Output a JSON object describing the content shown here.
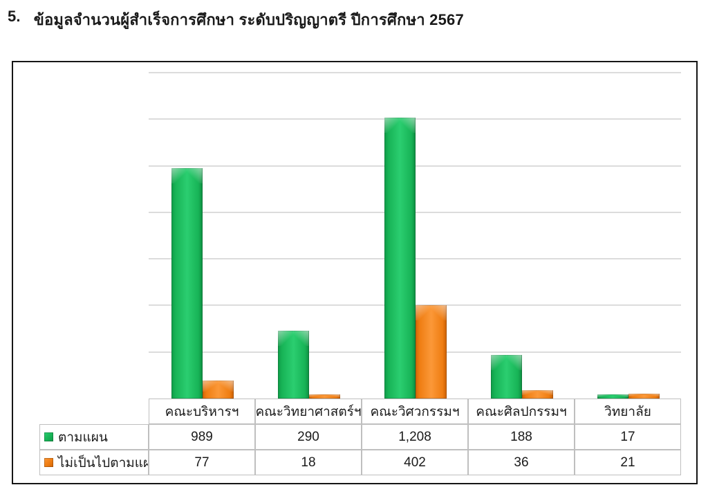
{
  "page": {
    "heading_number": "5.",
    "heading_text": "ข้อมูลจำนวนผู้สำเร็จการศึกษา ระดับปริญญาตรี ปีการศึกษา 2567"
  },
  "chart_data": {
    "type": "bar",
    "title": "",
    "categories": [
      "คณะบริหารฯ",
      "คณะวิทยาศาสตร์ฯ",
      "คณะวิศวกรรมฯ",
      "คณะศิลปกรรมฯ",
      "วิทยาลัย"
    ],
    "series": [
      {
        "name": "ตามแผน",
        "color": "#1FB45A",
        "values": [
          989,
          290,
          1208,
          188,
          17
        ],
        "display_values": [
          "989",
          "290",
          "1,208",
          "188",
          "17"
        ]
      },
      {
        "name": "ไม่เป็นไปตามแผน",
        "color": "#F28021",
        "values": [
          77,
          18,
          402,
          36,
          21
        ],
        "display_values": [
          "77",
          "18",
          "402",
          "36",
          "21"
        ]
      }
    ],
    "ylim": [
      0,
      1400
    ],
    "y_major_gridline_step": 200,
    "grid": "horizontal",
    "y_axis_labels_visible": false,
    "legend_position": "left-of-data-table",
    "data_table_shown": true
  },
  "colors": {
    "series_green": "#1FB45A",
    "series_orange": "#F28021",
    "chart_border": "#000000",
    "table_border": "#BFBFBF",
    "gridline": "#DCDCDC",
    "text": "#1A1A1A",
    "background": "#FFFFFF"
  }
}
